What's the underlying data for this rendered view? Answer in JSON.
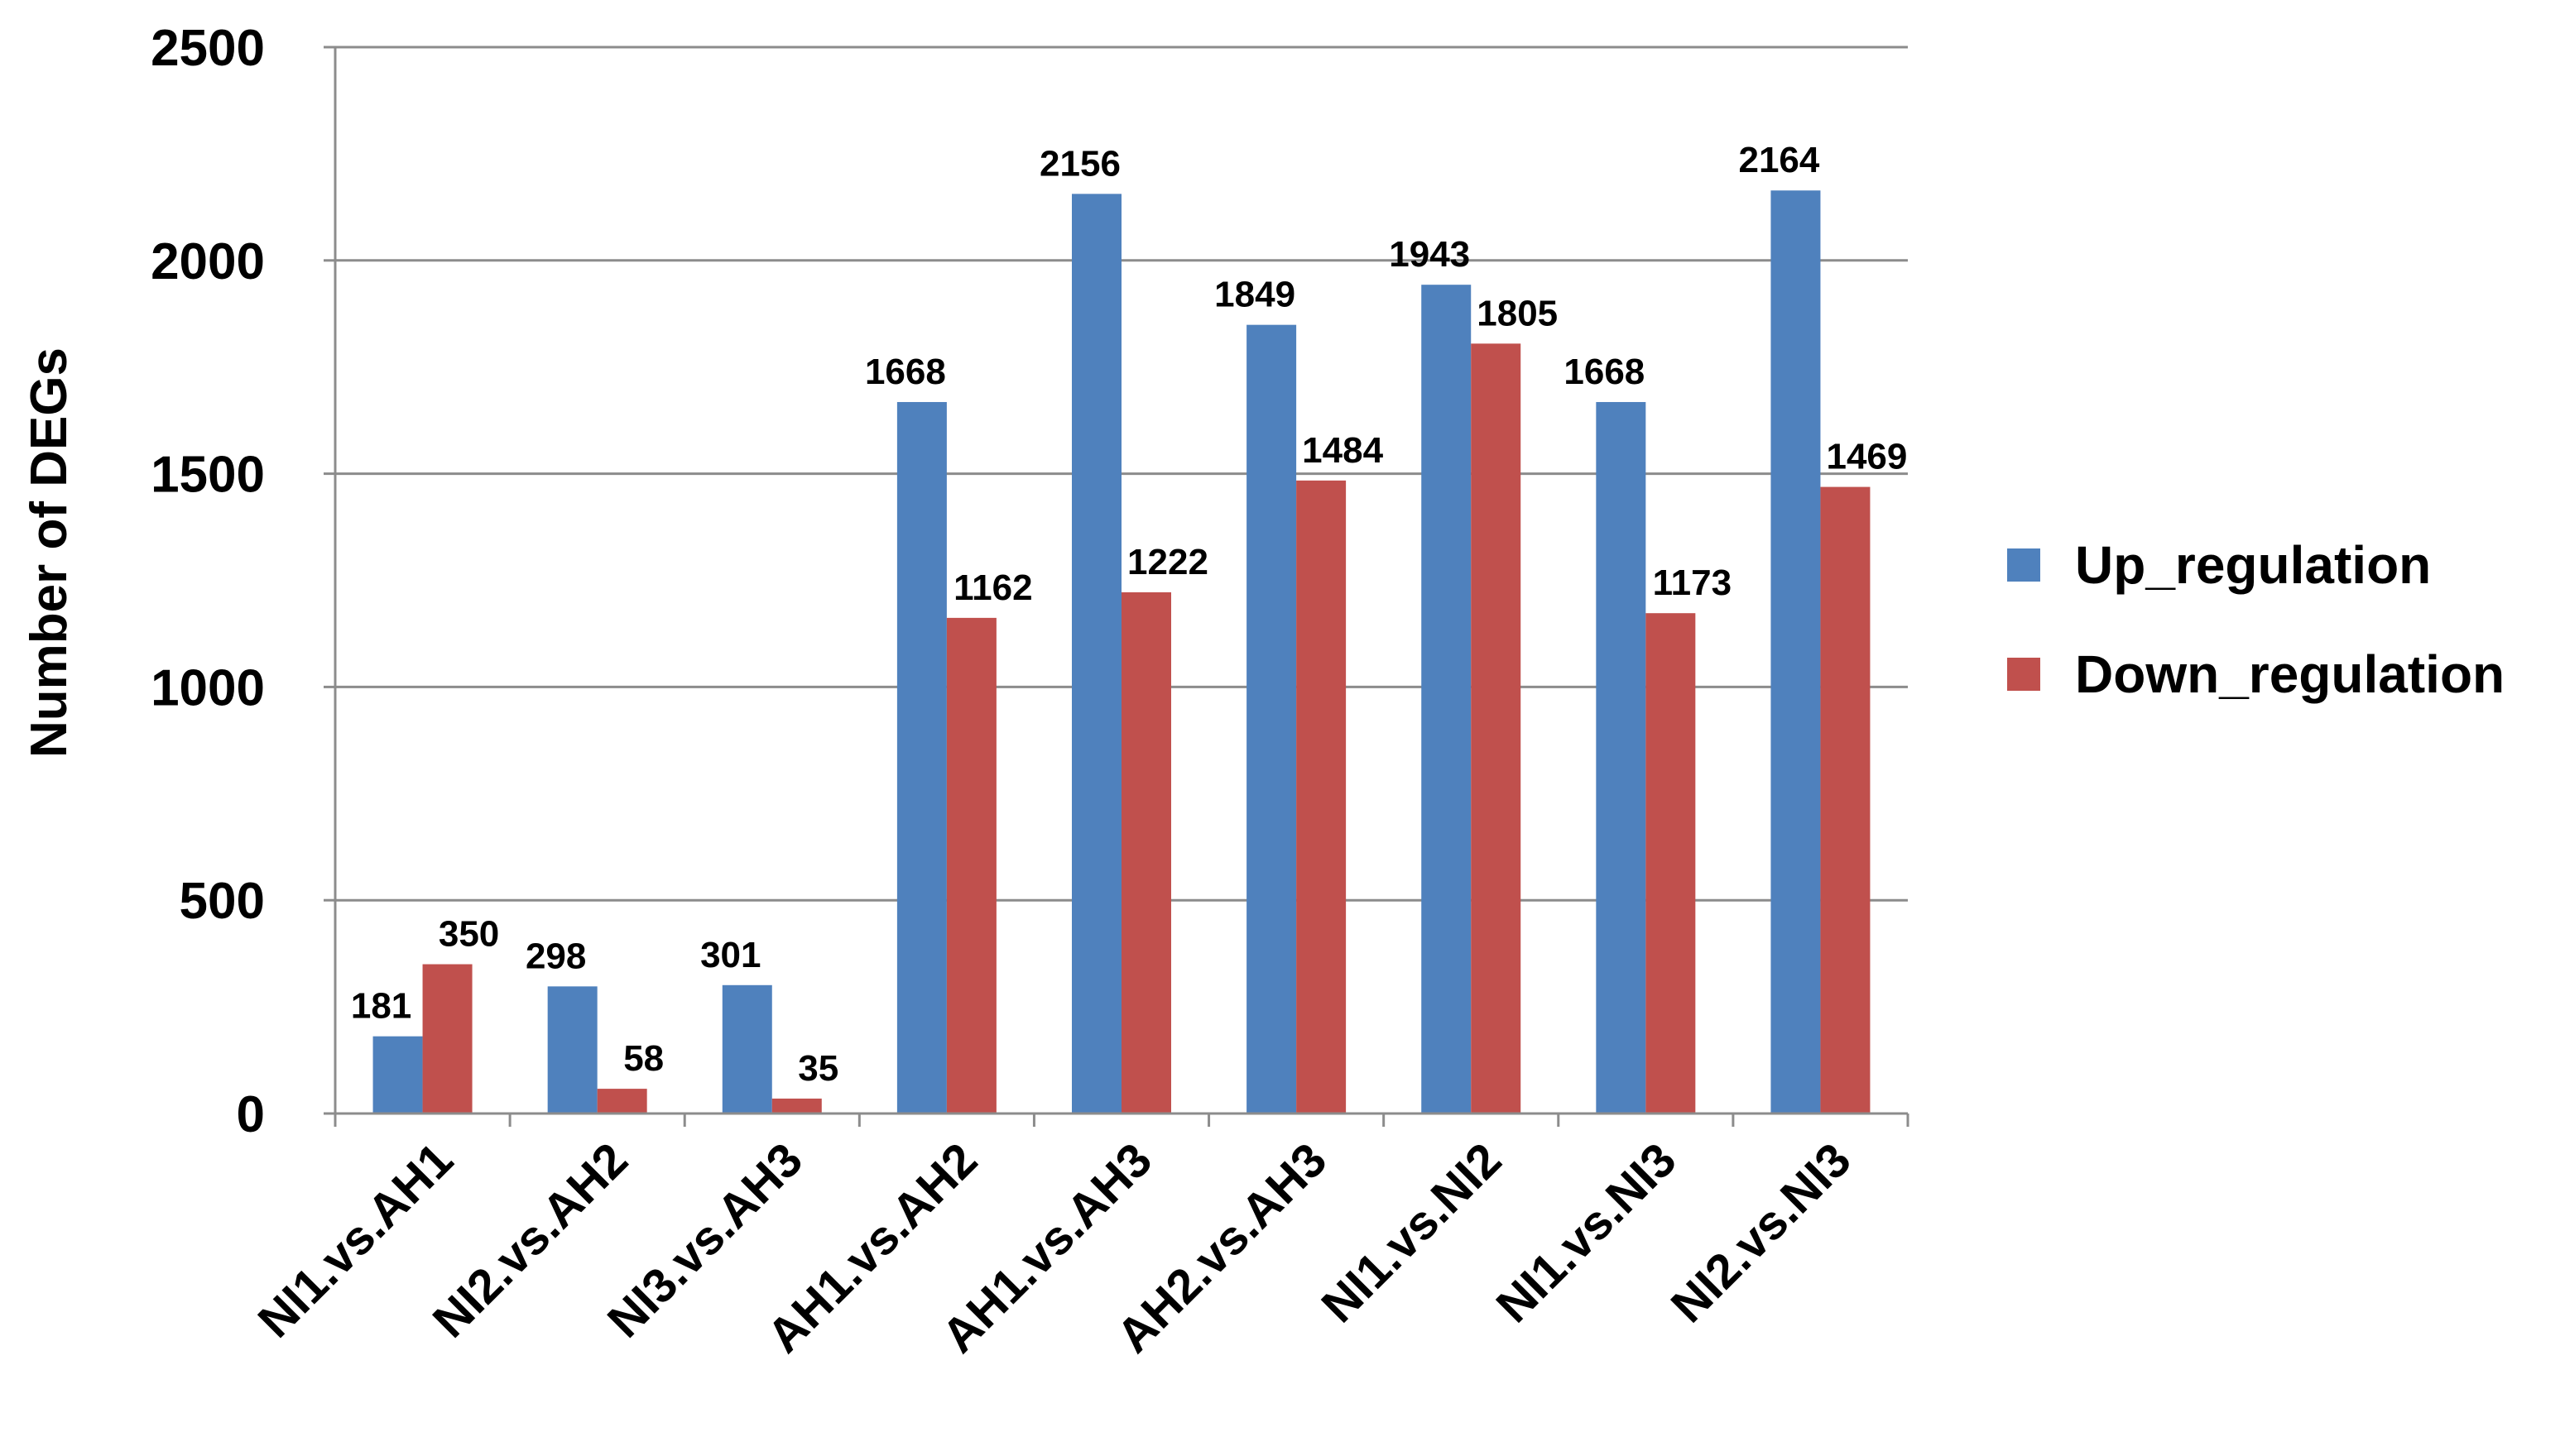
{
  "chart_data": {
    "type": "bar",
    "title": "",
    "xlabel": "",
    "ylabel": "Number of DEGs",
    "ylim": [
      0,
      2500
    ],
    "yticks": [
      0,
      500,
      1000,
      1500,
      2000,
      2500
    ],
    "grid": true,
    "legend_position": "right",
    "categories": [
      "NI1.vs.AH1",
      "NI2.vs.AH2",
      "NI3.vs.AH3",
      "AH1.vs.AH2",
      "AH1.vs.AH3",
      "AH2.vs.AH3",
      "NI1.vs.NI2",
      "NI1.vs.NI3",
      "NI2.vs.NI3"
    ],
    "series": [
      {
        "name": "Up_regulation",
        "color": "#4F81BD",
        "values": [
          181,
          298,
          301,
          1668,
          2156,
          1849,
          1943,
          1668,
          2164
        ]
      },
      {
        "name": "Down_regulation",
        "color": "#C0504D",
        "values": [
          350,
          58,
          35,
          1162,
          1222,
          1484,
          1805,
          1173,
          1469
        ]
      }
    ]
  }
}
